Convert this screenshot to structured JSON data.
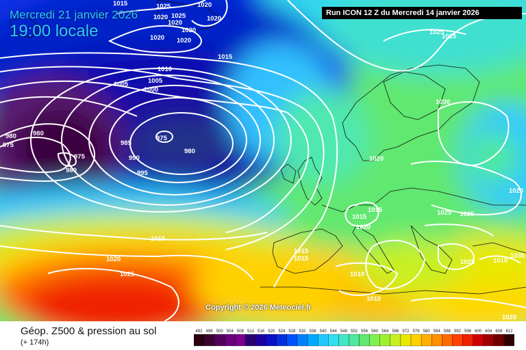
{
  "header": {
    "date": "Mercredi 21 janvier 2026",
    "local_time": "19:00 locale",
    "run_info": "Run ICON 12 Z du Mercredi 14 janvier 2026"
  },
  "map": {
    "copyright": "Copyright © 2026 Meteociel.fr",
    "isobar_labels": [
      {
        "text": "1015",
        "cls": "a"
      },
      {
        "text": "1025",
        "cls": "a"
      },
      {
        "text": "1025",
        "cls": "a"
      },
      {
        "text": "1020",
        "cls": "a"
      },
      {
        "text": "1020",
        "cls": "a"
      },
      {
        "text": "1020",
        "cls": "a"
      },
      {
        "text": "1020",
        "cls": "a"
      },
      {
        "text": "1020",
        "cls": "a"
      },
      {
        "text": "1020",
        "cls": "a"
      },
      {
        "text": "1020",
        "cls": "a"
      },
      {
        "text": "1015",
        "cls": "a"
      },
      {
        "text": "1010",
        "cls": "a"
      },
      {
        "text": "1005",
        "cls": "a"
      },
      {
        "text": "1005",
        "cls": "a"
      },
      {
        "text": "1000",
        "cls": "a"
      },
      {
        "text": "975",
        "cls": "a"
      },
      {
        "text": "985",
        "cls": "a"
      },
      {
        "text": "980",
        "cls": "a"
      },
      {
        "text": "990",
        "cls": "a"
      },
      {
        "text": "995",
        "cls": "a"
      },
      {
        "text": "980",
        "cls": "a"
      },
      {
        "text": "980",
        "cls": "a"
      },
      {
        "text": "975",
        "cls": "a"
      },
      {
        "text": "975",
        "cls": "a"
      },
      {
        "text": "980",
        "cls": "a"
      },
      {
        "text": "1015",
        "cls": "a"
      },
      {
        "text": "1020",
        "cls": "a"
      },
      {
        "text": "1025",
        "cls": "a"
      },
      {
        "text": "1025",
        "cls": "a"
      },
      {
        "text": "1025",
        "cls": "a"
      },
      {
        "text": "1030",
        "cls": "a"
      },
      {
        "text": "1020",
        "cls": "a"
      },
      {
        "text": "1015",
        "cls": "a"
      },
      {
        "text": "1015",
        "cls": "a"
      },
      {
        "text": "1020",
        "cls": "a"
      },
      {
        "text": "1015",
        "cls": "a"
      },
      {
        "text": "1015",
        "cls": "a"
      },
      {
        "text": "1010",
        "cls": "a"
      },
      {
        "text": "1010",
        "cls": "a"
      },
      {
        "text": "1025",
        "cls": "a"
      },
      {
        "text": "1025",
        "cls": "a"
      },
      {
        "text": "1020",
        "cls": "a"
      },
      {
        "text": "1010",
        "cls": "a"
      },
      {
        "text": "1035",
        "cls": "a"
      },
      {
        "text": "1020",
        "cls": "a"
      },
      {
        "text": "1025",
        "cls": "a"
      }
    ]
  },
  "legend": {
    "title": "Géop. Z500 & pression au sol",
    "lead_time": "(+ 174h)",
    "scale_values": [
      "492",
      "496",
      "500",
      "504",
      "508",
      "512",
      "516",
      "520",
      "524",
      "528",
      "532",
      "536",
      "540",
      "544",
      "548",
      "552",
      "556",
      "560",
      "564",
      "568",
      "572",
      "576",
      "580",
      "584",
      "588",
      "592",
      "596",
      "600",
      "604",
      "608",
      "612"
    ],
    "scale_colors": [
      "#2a0010",
      "#3a0030",
      "#55005a",
      "#6a007a",
      "#7a0090",
      "#2b0070",
      "#1a00a0",
      "#0a10c8",
      "#0030e0",
      "#0050ff",
      "#0080ff",
      "#00a8ff",
      "#20c8ff",
      "#30e0f0",
      "#40e8c8",
      "#50e8a0",
      "#60e870",
      "#80f050",
      "#a0f030",
      "#c8f020",
      "#e8e800",
      "#ffd000",
      "#ffb000",
      "#ff9000",
      "#ff6a00",
      "#ff4000",
      "#f02000",
      "#d00000",
      "#a00000",
      "#700000",
      "#300000"
    ]
  }
}
